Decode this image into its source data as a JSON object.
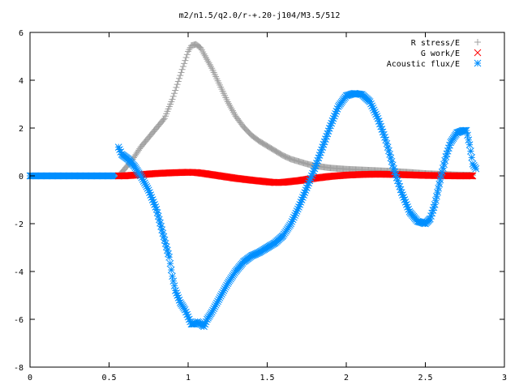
{
  "chart_data": {
    "type": "scatter",
    "title": "m2/n1.5/q2.0/r-+.20-j104/M3.5/512",
    "xlabel": "",
    "ylabel": "",
    "xlim": [
      0,
      3
    ],
    "ylim": [
      -8,
      6
    ],
    "grid": false,
    "legend_position": "top-right",
    "x_ticks": [
      {
        "value": 0,
        "label": "0"
      },
      {
        "value": 0.5,
        "label": "0.5"
      },
      {
        "value": 1,
        "label": "1"
      },
      {
        "value": 1.5,
        "label": "1.5"
      },
      {
        "value": 2,
        "label": "2"
      },
      {
        "value": 2.5,
        "label": "2.5"
      },
      {
        "value": 3,
        "label": "3"
      }
    ],
    "y_ticks": [
      {
        "value": 6,
        "label": "6"
      },
      {
        "value": 4,
        "label": "4"
      },
      {
        "value": 2,
        "label": "2"
      },
      {
        "value": 0,
        "label": "0"
      },
      {
        "value": -2,
        "label": "-2"
      },
      {
        "value": -4,
        "label": "-4"
      },
      {
        "value": -6,
        "label": "-6"
      },
      {
        "value": -8,
        "label": "-8"
      }
    ],
    "series": [
      {
        "name": "R stress/E",
        "marker": "plus",
        "color": "#a0a0a0",
        "points": [
          [
            0.56,
            0.0
          ],
          [
            0.6,
            0.3
          ],
          [
            0.65,
            0.7
          ],
          [
            0.7,
            1.2
          ],
          [
            0.75,
            1.6
          ],
          [
            0.8,
            2.0
          ],
          [
            0.85,
            2.4
          ],
          [
            0.9,
            3.2
          ],
          [
            0.95,
            4.2
          ],
          [
            1.0,
            5.2
          ],
          [
            1.02,
            5.45
          ],
          [
            1.05,
            5.5
          ],
          [
            1.08,
            5.35
          ],
          [
            1.1,
            5.1
          ],
          [
            1.15,
            4.5
          ],
          [
            1.2,
            3.8
          ],
          [
            1.25,
            3.1
          ],
          [
            1.3,
            2.5
          ],
          [
            1.35,
            2.05
          ],
          [
            1.4,
            1.7
          ],
          [
            1.45,
            1.45
          ],
          [
            1.5,
            1.25
          ],
          [
            1.55,
            1.05
          ],
          [
            1.6,
            0.85
          ],
          [
            1.65,
            0.7
          ],
          [
            1.7,
            0.6
          ],
          [
            1.75,
            0.5
          ],
          [
            1.8,
            0.42
          ],
          [
            1.9,
            0.33
          ],
          [
            2.0,
            0.28
          ],
          [
            2.1,
            0.25
          ],
          [
            2.2,
            0.22
          ],
          [
            2.3,
            0.19
          ],
          [
            2.4,
            0.15
          ],
          [
            2.5,
            0.1
          ],
          [
            2.6,
            0.07
          ],
          [
            2.7,
            0.04
          ],
          [
            2.8,
            0.03
          ]
        ]
      },
      {
        "name": "G work/E",
        "marker": "cross",
        "color": "#ff0000",
        "points": [
          [
            0.56,
            0.0
          ],
          [
            0.6,
            0.0
          ],
          [
            0.7,
            0.05
          ],
          [
            0.8,
            0.1
          ],
          [
            0.9,
            0.13
          ],
          [
            1.0,
            0.15
          ],
          [
            1.05,
            0.14
          ],
          [
            1.1,
            0.1
          ],
          [
            1.2,
            0.0
          ],
          [
            1.3,
            -0.1
          ],
          [
            1.4,
            -0.18
          ],
          [
            1.5,
            -0.25
          ],
          [
            1.55,
            -0.28
          ],
          [
            1.6,
            -0.27
          ],
          [
            1.7,
            -0.2
          ],
          [
            1.8,
            -0.1
          ],
          [
            1.9,
            -0.02
          ],
          [
            2.0,
            0.03
          ],
          [
            2.1,
            0.06
          ],
          [
            2.2,
            0.07
          ],
          [
            2.3,
            0.06
          ],
          [
            2.4,
            0.04
          ],
          [
            2.5,
            0.02
          ],
          [
            2.6,
            0.01
          ],
          [
            2.7,
            0.0
          ],
          [
            2.8,
            0.0
          ]
        ]
      },
      {
        "name": "Acoustic flux/E",
        "marker": "star",
        "color": "#008fff",
        "points": [
          [
            0.56,
            1.2
          ],
          [
            0.58,
            0.9
          ],
          [
            0.62,
            0.7
          ],
          [
            0.66,
            0.4
          ],
          [
            0.7,
            0.0
          ],
          [
            0.75,
            -0.6
          ],
          [
            0.8,
            -1.4
          ],
          [
            0.84,
            -2.4
          ],
          [
            0.88,
            -3.4
          ],
          [
            0.9,
            -4.2
          ],
          [
            0.92,
            -4.8
          ],
          [
            0.95,
            -5.3
          ],
          [
            0.98,
            -5.6
          ],
          [
            1.0,
            -5.9
          ],
          [
            1.02,
            -6.2
          ],
          [
            1.04,
            -6.2
          ],
          [
            1.06,
            -6.1
          ],
          [
            1.08,
            -6.2
          ],
          [
            1.1,
            -6.3
          ],
          [
            1.12,
            -6.0
          ],
          [
            1.15,
            -5.7
          ],
          [
            1.2,
            -5.1
          ],
          [
            1.25,
            -4.5
          ],
          [
            1.3,
            -4.0
          ],
          [
            1.35,
            -3.6
          ],
          [
            1.4,
            -3.35
          ],
          [
            1.45,
            -3.2
          ],
          [
            1.5,
            -3.0
          ],
          [
            1.55,
            -2.8
          ],
          [
            1.6,
            -2.5
          ],
          [
            1.65,
            -2.0
          ],
          [
            1.7,
            -1.3
          ],
          [
            1.75,
            -0.5
          ],
          [
            1.8,
            0.3
          ],
          [
            1.85,
            1.2
          ],
          [
            1.9,
            2.1
          ],
          [
            1.95,
            2.9
          ],
          [
            2.0,
            3.35
          ],
          [
            2.05,
            3.45
          ],
          [
            2.1,
            3.4
          ],
          [
            2.15,
            3.1
          ],
          [
            2.2,
            2.4
          ],
          [
            2.25,
            1.5
          ],
          [
            2.3,
            0.3
          ],
          [
            2.35,
            -0.7
          ],
          [
            2.4,
            -1.5
          ],
          [
            2.45,
            -1.9
          ],
          [
            2.5,
            -2.0
          ],
          [
            2.53,
            -1.8
          ],
          [
            2.56,
            -1.2
          ],
          [
            2.6,
            0.0
          ],
          [
            2.63,
            0.8
          ],
          [
            2.66,
            1.4
          ],
          [
            2.7,
            1.8
          ],
          [
            2.74,
            1.9
          ],
          [
            2.76,
            1.9
          ],
          [
            2.78,
            1.3
          ],
          [
            2.8,
            0.5
          ],
          [
            2.82,
            0.3
          ]
        ]
      }
    ]
  }
}
